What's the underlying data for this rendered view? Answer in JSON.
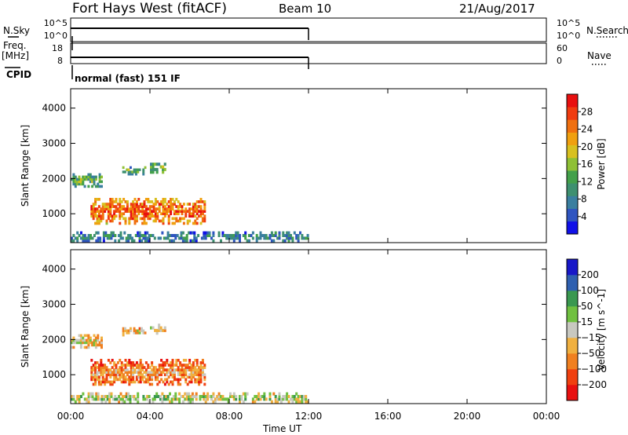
{
  "header": {
    "station": "Fort Hays West (fitACF)",
    "beam": "Beam 10",
    "date": "21/Aug/2017"
  },
  "left_labels": {
    "nsky": "N.Sky",
    "freq": "Freq.",
    "freq_unit": "[MHz]",
    "cpid": "CPID"
  },
  "right_labels": {
    "nsearch": "N.Search",
    "nave": "Nave"
  },
  "noise_panel": {
    "left_ticks": [
      "10^5",
      "10^0"
    ],
    "right_ticks": [
      "10^5",
      "10^0"
    ]
  },
  "freq_panel": {
    "left_ticks": [
      "18",
      "8"
    ],
    "right_ticks": [
      "60",
      "0"
    ]
  },
  "cpid_text": "normal (fast) 151 IF",
  "colors": {
    "power_scale": [
      "#1010e8",
      "#2f55c0",
      "#3a7fa0",
      "#3e9070",
      "#43a04a",
      "#8fc035",
      "#d8c020",
      "#f0a010",
      "#f07010",
      "#f03c10",
      "#e81010"
    ],
    "velocity_scale": [
      "#e81010",
      "#f04010",
      "#f08020",
      "#f0b040",
      "#c8c8c0",
      "#70c040",
      "#3a9850",
      "#2f60b0",
      "#1818c8"
    ]
  },
  "chart_data": [
    {
      "type": "heatmap",
      "ylabel": "Slant Range [km]",
      "xlabel": "",
      "x_ticks": [
        "00:00",
        "04:00",
        "08:00",
        "12:00",
        "16:00",
        "20:00",
        "00:00"
      ],
      "xlim_hours": [
        0,
        24
      ],
      "ylim": [
        180,
        4550
      ],
      "y_ticks": [
        1000,
        2000,
        3000,
        4000
      ],
      "data_end_hour": 12,
      "colorbar": {
        "label": "Power [dB]",
        "ticks": [
          "4",
          "8",
          "12",
          "16",
          "20",
          "24",
          "28"
        ]
      },
      "regions": [
        {
          "name": "E-region",
          "t0": 0.0,
          "t1": 12.0,
          "r0": 200,
          "r1": 500,
          "level": 0.35
        },
        {
          "name": "band-main",
          "t0": 1.0,
          "t1": 6.8,
          "r0": 700,
          "r1": 1450,
          "level": 0.85
        },
        {
          "name": "band-far-a",
          "t0": 0.0,
          "t1": 1.6,
          "r0": 1750,
          "r1": 2150,
          "level": 0.45
        },
        {
          "name": "band-far-b",
          "t0": 2.6,
          "t1": 3.8,
          "r0": 2100,
          "r1": 2350,
          "level": 0.5
        },
        {
          "name": "band-far-c",
          "t0": 4.0,
          "t1": 4.8,
          "r0": 2150,
          "r1": 2450,
          "level": 0.5
        }
      ]
    },
    {
      "type": "heatmap",
      "ylabel": "Slant Range [km]",
      "xlabel": "Time UT",
      "x_ticks": [
        "00:00",
        "04:00",
        "08:00",
        "12:00",
        "16:00",
        "20:00",
        "00:00"
      ],
      "xlim_hours": [
        0,
        24
      ],
      "ylim": [
        180,
        4550
      ],
      "y_ticks": [
        1000,
        2000,
        3000,
        4000
      ],
      "data_end_hour": 12,
      "colorbar": {
        "label": "Velocity [m s^-1]",
        "ticks": [
          "-200",
          "-100",
          "-50",
          "-15",
          "15",
          "50",
          "100",
          "200"
        ]
      },
      "regions": [
        {
          "name": "E-region",
          "t0": 0.0,
          "t1": 12.0,
          "r0": 200,
          "r1": 500,
          "level": 0.62
        },
        {
          "name": "band-main",
          "t0": 1.0,
          "t1": 6.8,
          "r0": 700,
          "r1": 1450,
          "level": 0.35
        },
        {
          "name": "band-far-a",
          "t0": 0.0,
          "t1": 1.6,
          "r0": 1750,
          "r1": 2150,
          "level": 0.5
        },
        {
          "name": "band-far-b",
          "t0": 2.6,
          "t1": 3.8,
          "r0": 2100,
          "r1": 2350,
          "level": 0.5
        },
        {
          "name": "band-far-c",
          "t0": 4.0,
          "t1": 4.8,
          "r0": 2150,
          "r1": 2450,
          "level": 0.5
        }
      ]
    }
  ]
}
